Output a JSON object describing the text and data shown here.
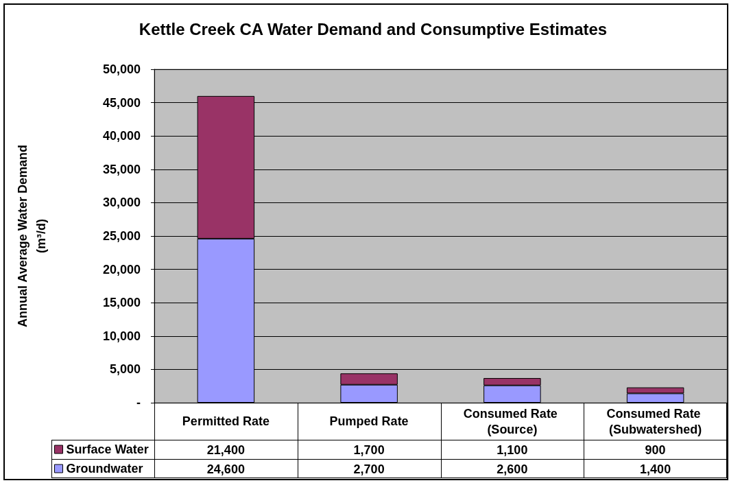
{
  "chart_data": {
    "type": "bar",
    "title": "Kettle Creek CA Water Demand and Consumptive Estimates",
    "ylabel": "Annual Average Water Demand (m³/d)",
    "categories": [
      "Permitted Rate",
      "Pumped Rate",
      "Consumed Rate (Source)",
      "Consumed Rate (Subwatershed)"
    ],
    "series": [
      {
        "name": "Groundwater",
        "color": "#9999ff",
        "values": [
          24600,
          2700,
          2600,
          1400
        ],
        "value_labels": [
          "24,600",
          "2,700",
          "2,600",
          "1,400"
        ]
      },
      {
        "name": "Surface Water",
        "color": "#993366",
        "values": [
          21400,
          1700,
          1100,
          900
        ],
        "value_labels": [
          "21,400",
          "1,700",
          "1,100",
          "900"
        ]
      }
    ],
    "stacked": true,
    "ylim": [
      0,
      50000
    ],
    "yticks": [
      {
        "value": 0,
        "label": "-"
      },
      {
        "value": 5000,
        "label": "5,000"
      },
      {
        "value": 10000,
        "label": "10,000"
      },
      {
        "value": 15000,
        "label": "15,000"
      },
      {
        "value": 20000,
        "label": "20,000"
      },
      {
        "value": 25000,
        "label": "25,000"
      },
      {
        "value": 30000,
        "label": "30,000"
      },
      {
        "value": 35000,
        "label": "35,000"
      },
      {
        "value": 40000,
        "label": "40,000"
      },
      {
        "value": 45000,
        "label": "45,000"
      },
      {
        "value": 50000,
        "label": "50,000"
      }
    ],
    "grid": "y",
    "legend": "bottom left"
  }
}
